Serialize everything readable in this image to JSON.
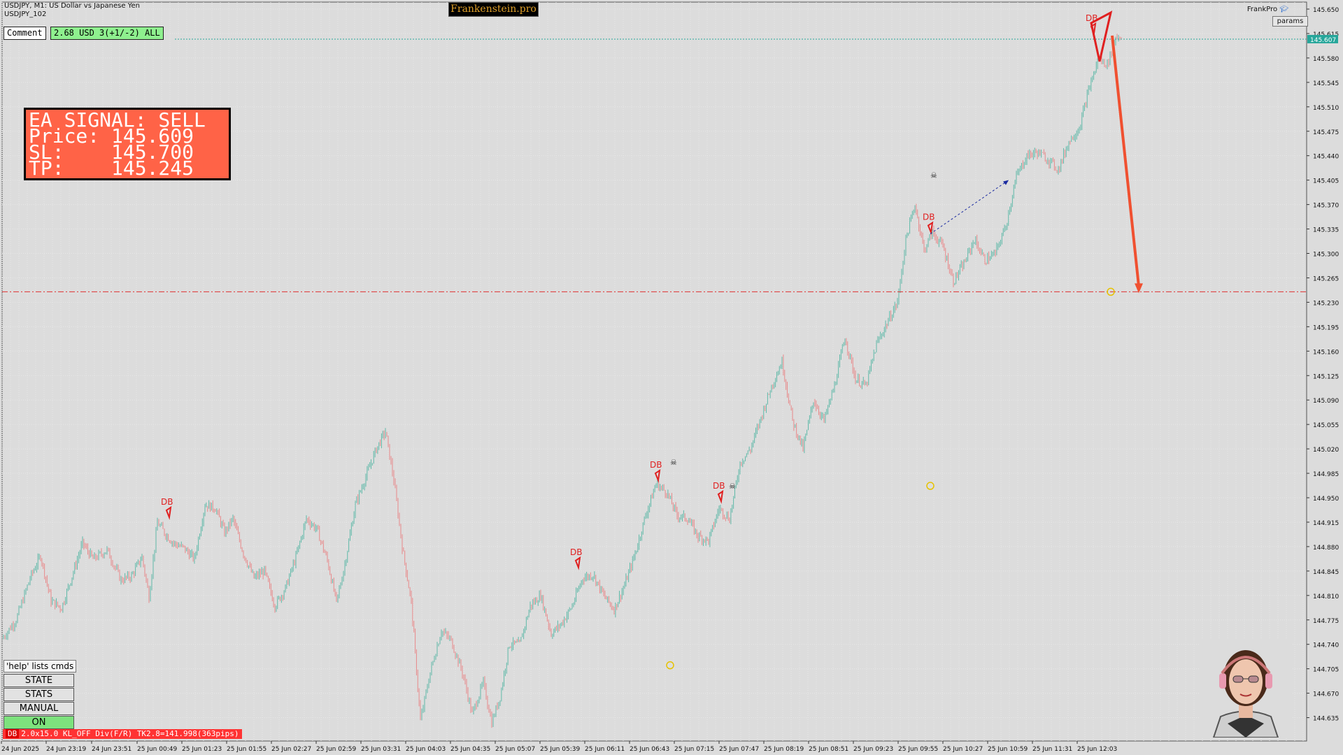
{
  "header": {
    "symbol_line": "USDJPY, M1:  US Dollar vs Japanese Yen",
    "profile_line": "USDJPY_102",
    "brand": "Frankenstein.pro",
    "comment_label": "Comment",
    "comment_value": "2.68 USD 3(+1/-2) ALL",
    "frankpro_label": "FrankPro",
    "params_label": "params"
  },
  "signal": {
    "line1": "EA SIGNAL: SELL",
    "line2": "Price: 145.609",
    "line3": "SL:    145.700",
    "line4": "TP:    145.245",
    "bg_color": "#ff6347"
  },
  "controls": {
    "help": "'help' lists cmds",
    "state": "STATE",
    "stats": "STATS",
    "manual": "MANUAL",
    "on": "ON"
  },
  "status": {
    "tag": "DB",
    "text": "2.0x15.0 KL_OFF Div(F/R) TK2.8=141.998(363pips)"
  },
  "chart_data": {
    "type": "candlestick",
    "symbol": "USDJPY",
    "timeframe": "M1",
    "ylim": [
      144.605,
      145.655
    ],
    "y_ticks": [
      "145.650",
      "145.615",
      "145.580",
      "145.545",
      "145.510",
      "145.475",
      "145.440",
      "145.405",
      "145.370",
      "145.335",
      "145.300",
      "145.265",
      "145.230",
      "145.195",
      "145.160",
      "145.125",
      "145.090",
      "145.055",
      "145.020",
      "144.985",
      "144.950",
      "144.915",
      "144.880",
      "144.845",
      "144.810",
      "144.775",
      "144.740",
      "144.705",
      "144.670",
      "144.635"
    ],
    "x_labels": [
      "24 Jun 2025",
      "24 Jun 23:19",
      "24 Jun 23:51",
      "25 Jun 00:49",
      "25 Jun 01:23",
      "25 Jun 01:55",
      "25 Jun 02:27",
      "25 Jun 02:59",
      "25 Jun 03:31",
      "25 Jun 04:03",
      "25 Jun 04:35",
      "25 Jun 05:07",
      "25 Jun 05:39",
      "25 Jun 06:11",
      "25 Jun 06:43",
      "25 Jun 07:15",
      "25 Jun 07:47",
      "25 Jun 08:19",
      "25 Jun 08:51",
      "25 Jun 09:23",
      "25 Jun 09:55",
      "25 Jun 10:27",
      "25 Jun 10:59",
      "25 Jun 11:31",
      "25 Jun 12:03"
    ],
    "current_price": 145.607,
    "current_price_label": "145.607",
    "tp_level": 145.245,
    "path": [
      [
        0,
        144.748
      ],
      [
        20,
        144.775
      ],
      [
        40,
        144.835
      ],
      [
        55,
        144.867
      ],
      [
        70,
        144.802
      ],
      [
        85,
        144.792
      ],
      [
        100,
        144.838
      ],
      [
        115,
        144.885
      ],
      [
        130,
        144.862
      ],
      [
        150,
        144.875
      ],
      [
        170,
        144.832
      ],
      [
        185,
        144.838
      ],
      [
        200,
        144.865
      ],
      [
        210,
        144.808
      ],
      [
        222,
        144.915
      ],
      [
        232,
        144.9
      ],
      [
        245,
        144.885
      ],
      [
        260,
        144.878
      ],
      [
        275,
        144.862
      ],
      [
        290,
        144.94
      ],
      [
        305,
        144.935
      ],
      [
        318,
        144.9
      ],
      [
        330,
        144.92
      ],
      [
        345,
        144.87
      ],
      [
        360,
        144.835
      ],
      [
        375,
        144.845
      ],
      [
        390,
        144.795
      ],
      [
        405,
        144.82
      ],
      [
        420,
        144.865
      ],
      [
        435,
        144.92
      ],
      [
        450,
        144.905
      ],
      [
        465,
        144.86
      ],
      [
        478,
        144.8
      ],
      [
        490,
        144.855
      ],
      [
        505,
        144.94
      ],
      [
        520,
        144.98
      ],
      [
        535,
        145.02
      ],
      [
        548,
        145.045
      ],
      [
        560,
        144.975
      ],
      [
        572,
        144.88
      ],
      [
        585,
        144.8
      ],
      [
        598,
        144.63
      ],
      [
        612,
        144.7
      ],
      [
        628,
        144.76
      ],
      [
        642,
        144.745
      ],
      [
        658,
        144.7
      ],
      [
        672,
        144.64
      ],
      [
        688,
        144.685
      ],
      [
        700,
        144.628
      ],
      [
        712,
        144.665
      ],
      [
        725,
        144.74
      ],
      [
        740,
        144.74
      ],
      [
        755,
        144.795
      ],
      [
        770,
        144.81
      ],
      [
        785,
        144.755
      ],
      [
        800,
        144.77
      ],
      [
        815,
        144.795
      ],
      [
        830,
        144.835
      ],
      [
        845,
        144.84
      ],
      [
        860,
        144.81
      ],
      [
        875,
        144.79
      ],
      [
        890,
        144.825
      ],
      [
        905,
        144.87
      ],
      [
        920,
        144.925
      ],
      [
        935,
        144.97
      ],
      [
        950,
        144.958
      ],
      [
        965,
        144.925
      ],
      [
        980,
        144.92
      ],
      [
        995,
        144.895
      ],
      [
        1010,
        144.888
      ],
      [
        1025,
        144.935
      ],
      [
        1040,
        144.92
      ],
      [
        1055,
        145.0
      ],
      [
        1070,
        145.02
      ],
      [
        1085,
        145.065
      ],
      [
        1100,
        145.11
      ],
      [
        1115,
        145.145
      ],
      [
        1130,
        145.06
      ],
      [
        1145,
        145.02
      ],
      [
        1160,
        145.09
      ],
      [
        1175,
        145.06
      ],
      [
        1190,
        145.11
      ],
      [
        1205,
        145.18
      ],
      [
        1220,
        145.12
      ],
      [
        1235,
        145.11
      ],
      [
        1250,
        145.17
      ],
      [
        1265,
        145.2
      ],
      [
        1280,
        145.23
      ],
      [
        1292,
        145.32
      ],
      [
        1305,
        145.37
      ],
      [
        1318,
        145.305
      ],
      [
        1330,
        145.33
      ],
      [
        1345,
        145.31
      ],
      [
        1360,
        145.26
      ],
      [
        1375,
        145.285
      ],
      [
        1390,
        145.32
      ],
      [
        1405,
        145.29
      ],
      [
        1420,
        145.3
      ],
      [
        1435,
        145.34
      ],
      [
        1450,
        145.41
      ],
      [
        1465,
        145.44
      ],
      [
        1480,
        145.445
      ],
      [
        1495,
        145.435
      ],
      [
        1510,
        145.42
      ],
      [
        1525,
        145.46
      ],
      [
        1540,
        145.48
      ],
      [
        1555,
        145.54
      ],
      [
        1568,
        145.58
      ],
      [
        1580,
        145.57
      ],
      [
        1592,
        145.61
      ],
      [
        1600,
        145.612
      ]
    ]
  },
  "annotations": {
    "db_label": "DB"
  }
}
